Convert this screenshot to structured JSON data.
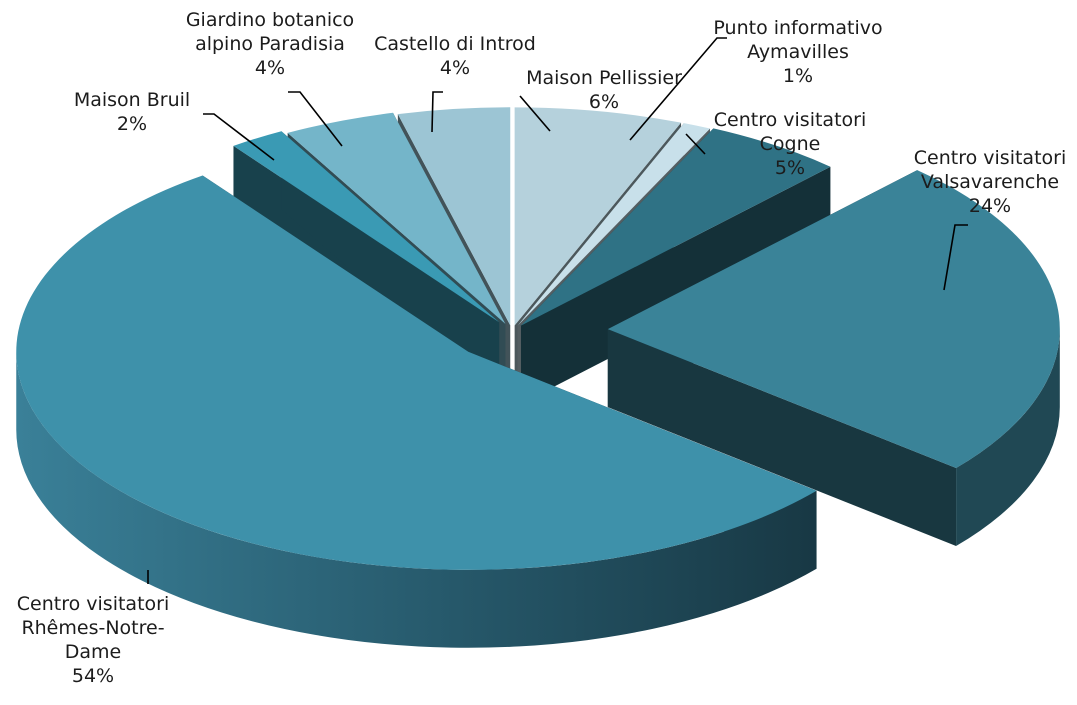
{
  "chart_data": {
    "type": "pie",
    "style": "3d-exploded",
    "start_angle_deg": 90,
    "direction": "clockwise",
    "slices": [
      {
        "label_lines": [
          "Maison Pellissier",
          "6%"
        ],
        "value": 6,
        "color": "#b5d1dc"
      },
      {
        "label_lines": [
          "Punto informativo",
          "Aymavilles",
          "1%"
        ],
        "value": 1,
        "color": "#c8e0ea"
      },
      {
        "label_lines": [
          "Centro visitatori",
          "Cogne",
          "5%"
        ],
        "value": 5,
        "color": "#2f7285"
      },
      {
        "label_lines": [
          "Centro visitatori",
          "Valsavarenche",
          "24%"
        ],
        "value": 24,
        "color": "#3a8398"
      },
      {
        "label_lines": [
          "Centro visitatori",
          "Rhêmes-Notre-",
          "Dame",
          "54%"
        ],
        "value": 54,
        "color": "#3e91aa"
      },
      {
        "label_lines": [
          "Maison Bruil",
          "2%"
        ],
        "value": 2,
        "color": "#3a9ab4"
      },
      {
        "label_lines": [
          "Giardino botanico",
          "alpino Paradisia",
          "4%"
        ],
        "value": 4,
        "color": "#74b5c9"
      },
      {
        "label_lines": [
          "Castello di Introd",
          "4%"
        ],
        "value": 4,
        "color": "#9cc5d4"
      }
    ]
  }
}
